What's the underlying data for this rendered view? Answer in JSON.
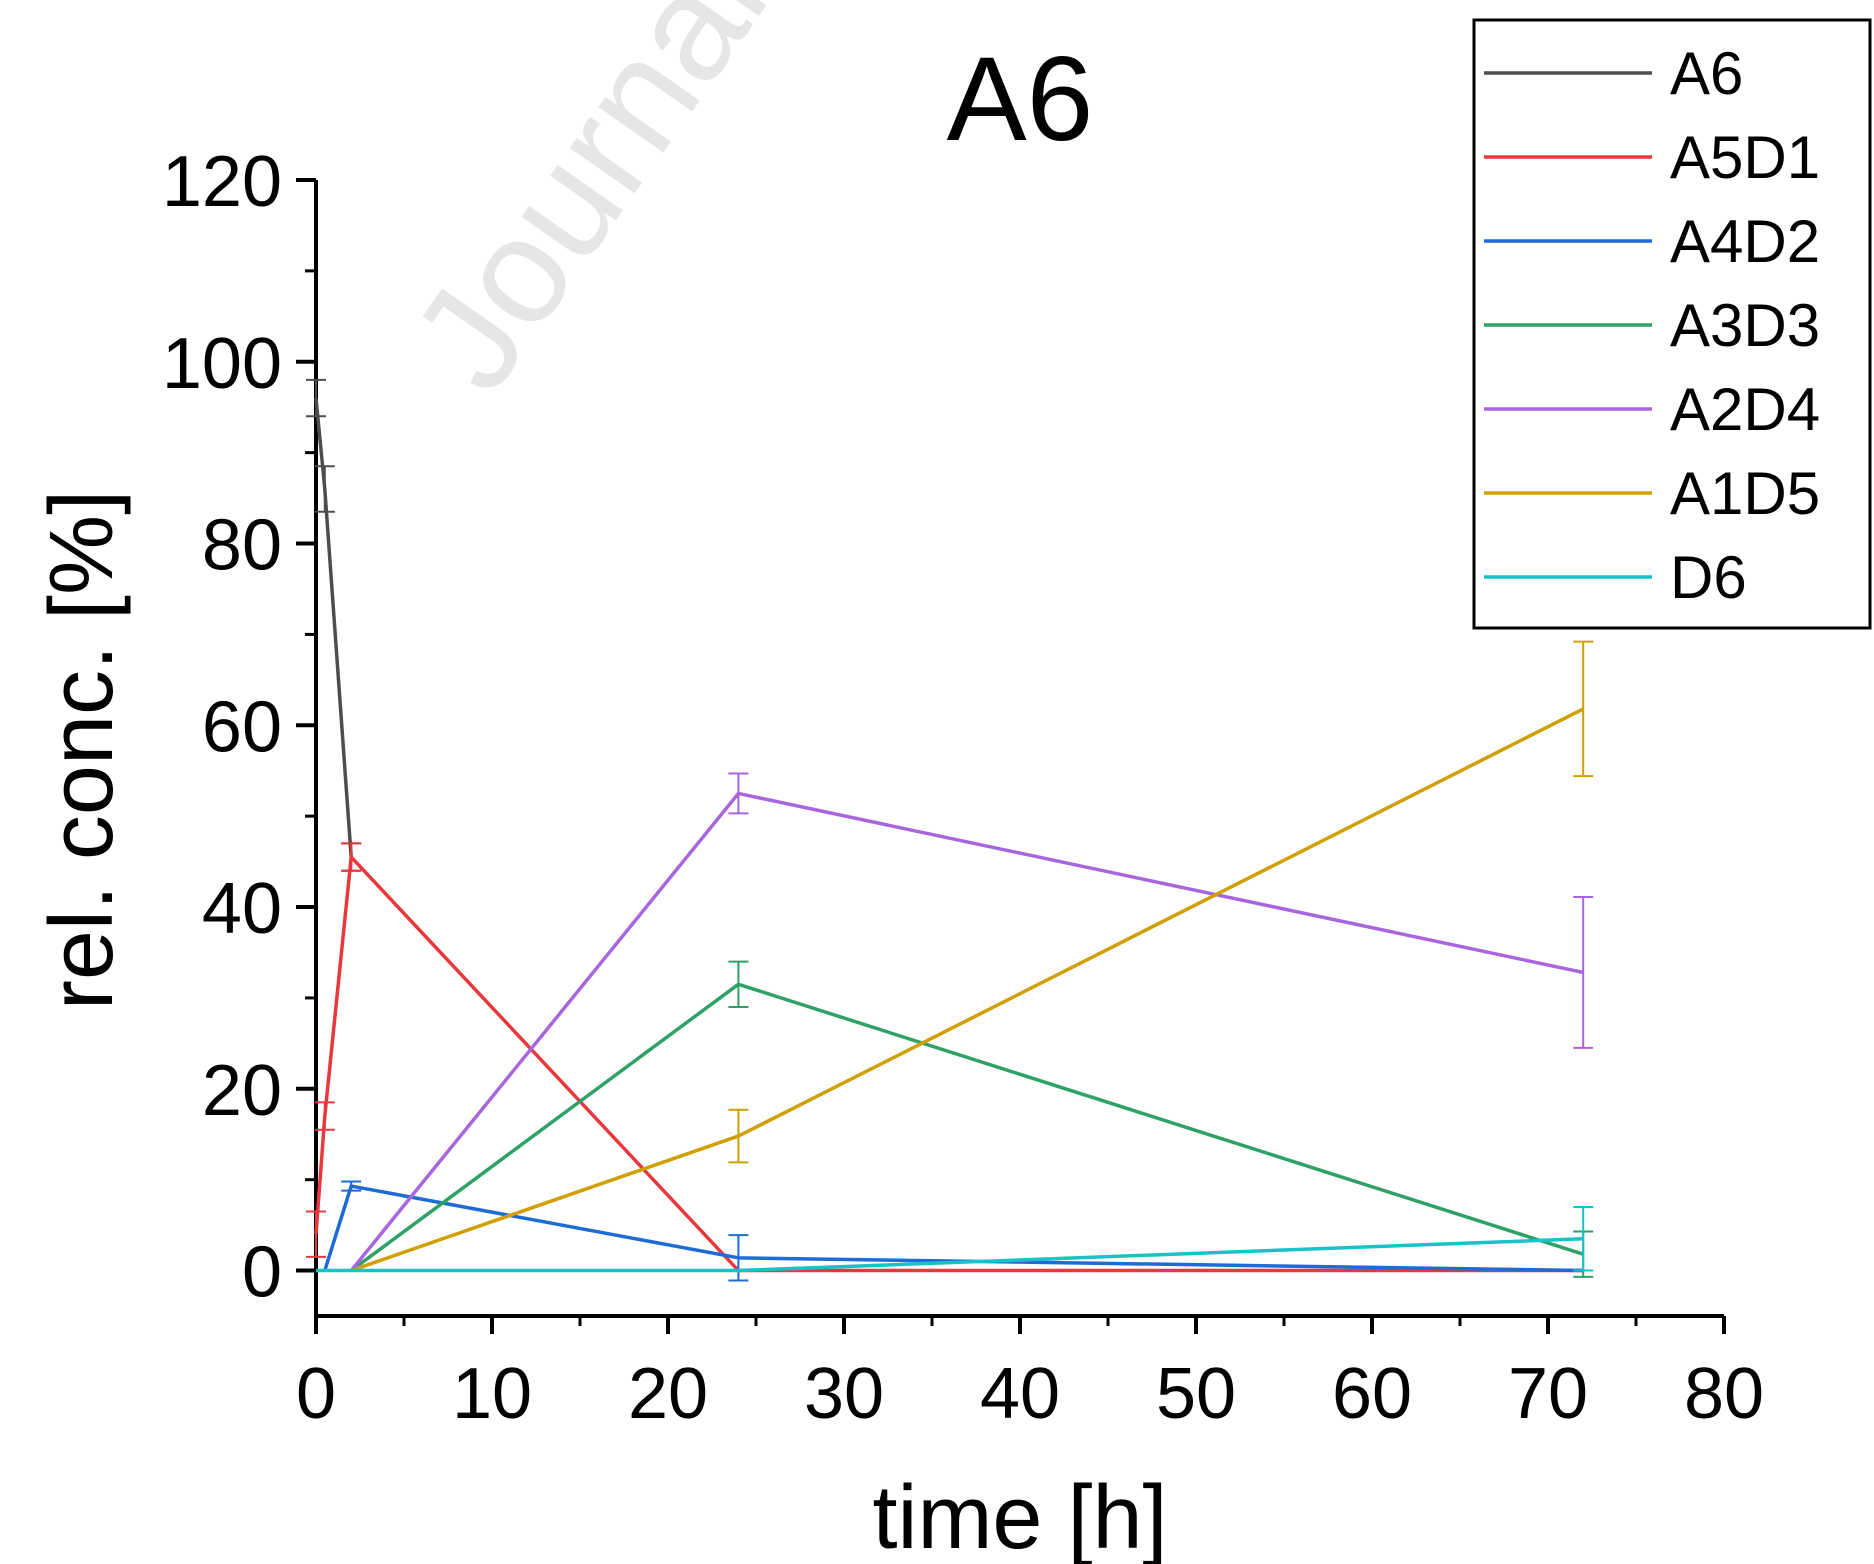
{
  "watermark": "Journal",
  "chart_data": {
    "type": "line",
    "title": "A6",
    "xlabel": "time [h]",
    "ylabel": "rel. conc. [%]",
    "xlim": [
      0,
      80
    ],
    "ylim": [
      -5,
      120
    ],
    "x_ticks": [
      0,
      10,
      20,
      30,
      40,
      50,
      60,
      70,
      80
    ],
    "y_ticks": [
      0,
      20,
      40,
      60,
      80,
      100,
      120
    ],
    "grid": false,
    "legend_position": "top-right",
    "series": [
      {
        "name": "A6",
        "color": "#4d4d4d",
        "points": [
          {
            "x": 0,
            "y": 96,
            "err": 2
          },
          {
            "x": 0.5,
            "y": 86,
            "err": 2.5
          },
          {
            "x": 2,
            "y": 45.5,
            "err": 1.5
          }
        ]
      },
      {
        "name": "A5D1",
        "color": "#e8383d",
        "points": [
          {
            "x": 0,
            "y": 4,
            "err": 2.5
          },
          {
            "x": 0.5,
            "y": 17,
            "err": 1.5
          },
          {
            "x": 2,
            "y": 45.5,
            "err": 1.5
          },
          {
            "x": 24,
            "y": 0,
            "err": 0
          },
          {
            "x": 72,
            "y": 0,
            "err": 0
          }
        ]
      },
      {
        "name": "A4D2",
        "color": "#1f6bd6",
        "points": [
          {
            "x": 0.5,
            "y": 0,
            "err": 0
          },
          {
            "x": 2,
            "y": 9.3,
            "err": 0.5
          },
          {
            "x": 24,
            "y": 1.4,
            "err": 2.5
          },
          {
            "x": 72,
            "y": 0,
            "err": 0
          }
        ]
      },
      {
        "name": "A3D3",
        "color": "#2ea266",
        "points": [
          {
            "x": 2,
            "y": 0,
            "err": 0
          },
          {
            "x": 24,
            "y": 31.5,
            "err": 2.5
          },
          {
            "x": 72,
            "y": 1.8,
            "err": 2.5
          }
        ]
      },
      {
        "name": "A2D4",
        "color": "#a866de",
        "points": [
          {
            "x": 2,
            "y": 0,
            "err": 0
          },
          {
            "x": 24,
            "y": 52.5,
            "err": 2.2
          },
          {
            "x": 72,
            "y": 32.8,
            "err": 8.3
          }
        ]
      },
      {
        "name": "A1D5",
        "color": "#d19f00",
        "points": [
          {
            "x": 2,
            "y": 0,
            "err": 0
          },
          {
            "x": 24,
            "y": 14.8,
            "err": 2.9
          },
          {
            "x": 72,
            "y": 61.8,
            "err": 7.4
          }
        ]
      },
      {
        "name": "D6",
        "color": "#17c3c8",
        "points": [
          {
            "x": 0,
            "y": 0,
            "err": 0
          },
          {
            "x": 24,
            "y": 0,
            "err": 0
          },
          {
            "x": 72,
            "y": 3.5,
            "err": 3.5
          }
        ]
      }
    ]
  }
}
